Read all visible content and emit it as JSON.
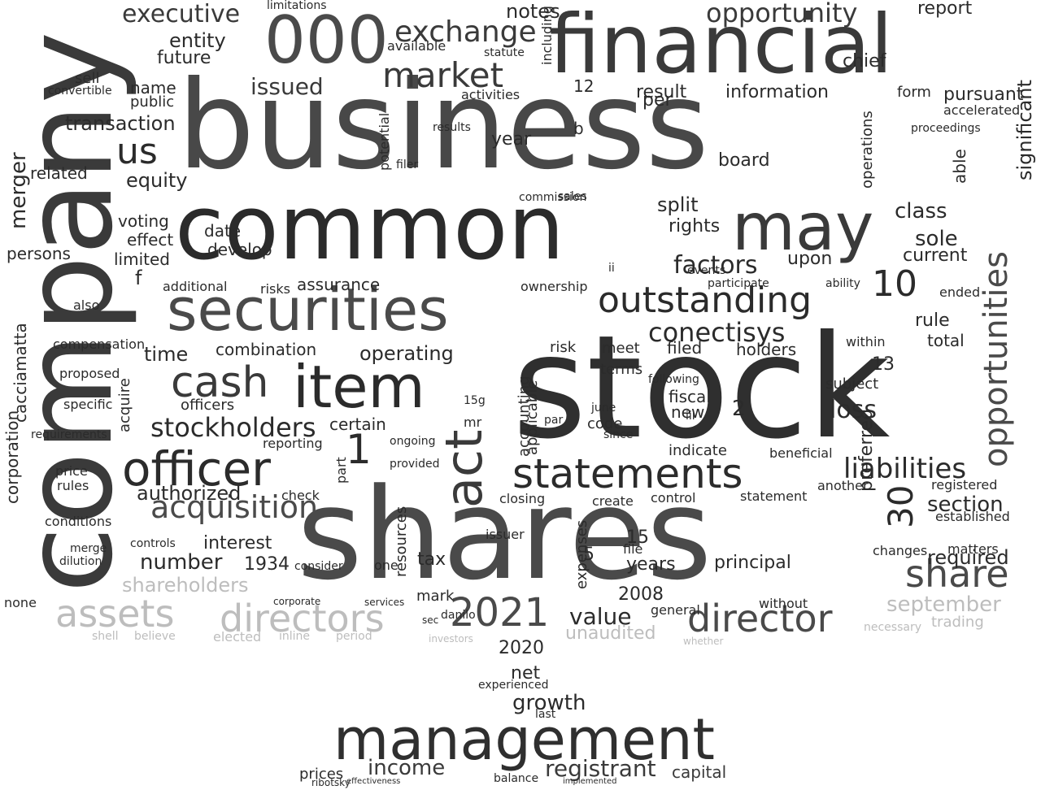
{
  "wordcloud": {
    "colors": {
      "background": "#ffffff",
      "dark": "#2b2b2b",
      "mid": "#4a4a4a",
      "light": "#bdbdbd"
    },
    "words": [
      {
        "t": "company",
        "c": "#3a3a3a",
        "r": 1
      },
      {
        "t": "business",
        "c": "#484848"
      },
      {
        "t": "stock",
        "c": "#2f2f2f"
      },
      {
        "t": "shares",
        "c": "#4a4a4a"
      },
      {
        "t": "common",
        "c": "#2b2b2b"
      },
      {
        "t": "financial",
        "c": "#3a3a3a"
      },
      {
        "t": "securities",
        "c": "#4a4a4a"
      },
      {
        "t": "management",
        "c": "#2f2f2f"
      },
      {
        "t": "may",
        "c": "#3a3a3a"
      },
      {
        "t": "000",
        "c": "#4a4a4a"
      },
      {
        "t": "item",
        "c": "#2b2b2b"
      },
      {
        "t": "officer",
        "c": "#2b2b2b"
      },
      {
        "t": "act",
        "c": "#3a3a3a",
        "r": 1
      },
      {
        "t": "statements",
        "c": "#2b2b2b"
      },
      {
        "t": "opportunities",
        "c": "#4a4a4a",
        "r": 1
      },
      {
        "t": "cash",
        "c": "#3a3a3a"
      },
      {
        "t": "outstanding",
        "c": "#2b2b2b"
      },
      {
        "t": "2021",
        "c": "#4a4a4a"
      },
      {
        "t": "director",
        "c": "#4a4a4a"
      },
      {
        "t": "assets",
        "c": "#bdbdbd"
      },
      {
        "t": "directors",
        "c": "#bdbdbd"
      },
      {
        "t": "market",
        "c": "#3a3a3a"
      },
      {
        "t": "acquisition",
        "c": "#4a4a4a"
      },
      {
        "t": "exchange",
        "c": "#3a3a3a"
      },
      {
        "t": "opportunity",
        "c": "#3a3a3a"
      },
      {
        "t": "stockholders",
        "c": "#2b2b2b"
      },
      {
        "t": "share",
        "c": "#4a4a4a"
      },
      {
        "t": "conectisys",
        "c": "#2b2b2b"
      },
      {
        "t": "liabilities",
        "c": "#2b2b2b"
      },
      {
        "t": "factors",
        "c": "#2b2b2b"
      },
      {
        "t": "executive",
        "c": "#3a3a3a"
      },
      {
        "t": "issued",
        "c": "#3a3a3a"
      },
      {
        "t": "value",
        "c": "#2b2b2b"
      },
      {
        "t": "september",
        "c": "#bdbdbd"
      },
      {
        "t": "shareholders",
        "c": "#bdbdbd"
      },
      {
        "t": "unaudited",
        "c": "#bdbdbd"
      },
      {
        "t": "registrant",
        "c": "#3a3a3a"
      },
      {
        "t": "income",
        "c": "#3a3a3a"
      },
      {
        "t": "authorized",
        "c": "#2b2b2b"
      },
      {
        "t": "number",
        "c": "#2b2b2b"
      },
      {
        "t": "loss",
        "c": "#2b2b2b"
      },
      {
        "t": "sole",
        "c": "#2b2b2b"
      },
      {
        "t": "class",
        "c": "#2b2b2b"
      },
      {
        "t": "required",
        "c": "#2b2b2b"
      },
      {
        "t": "section",
        "c": "#2b2b2b"
      },
      {
        "t": "operating",
        "c": "#2b2b2b"
      },
      {
        "t": "time",
        "c": "#2b2b2b"
      },
      {
        "t": "equity",
        "c": "#2b2b2b"
      },
      {
        "t": "transaction",
        "c": "#2b2b2b"
      },
      {
        "t": "entity",
        "c": "#2b2b2b"
      },
      {
        "t": "future",
        "c": "#2b2b2b"
      },
      {
        "t": "growth",
        "c": "#2b2b2b"
      },
      {
        "t": "net",
        "c": "#2b2b2b"
      },
      {
        "t": "2020",
        "c": "#2b2b2b"
      },
      {
        "t": "notes",
        "c": "#2b2b2b"
      },
      {
        "t": "chief",
        "c": "#2b2b2b"
      },
      {
        "t": "report",
        "c": "#2b2b2b"
      },
      {
        "t": "information",
        "c": "#2b2b2b"
      },
      {
        "t": "result",
        "c": "#2b2b2b"
      },
      {
        "t": "pursuant",
        "c": "#2b2b2b"
      },
      {
        "t": "rights",
        "c": "#2b2b2b"
      },
      {
        "t": "split",
        "c": "#2b2b2b"
      },
      {
        "t": "upon",
        "c": "#2b2b2b"
      },
      {
        "t": "current",
        "c": "#2b2b2b"
      },
      {
        "t": "significant",
        "c": "#2b2b2b",
        "r": 1
      },
      {
        "t": "rule",
        "c": "#2b2b2b"
      },
      {
        "t": "total",
        "c": "#2b2b2b"
      },
      {
        "t": "preferred",
        "c": "#2b2b2b",
        "r": 1
      },
      {
        "t": "filed",
        "c": "#2b2b2b"
      },
      {
        "t": "holders",
        "c": "#2b2b2b"
      },
      {
        "t": "interest",
        "c": "#2b2b2b"
      },
      {
        "t": "1934",
        "c": "#2b2b2b"
      },
      {
        "t": "principal",
        "c": "#2b2b2b"
      },
      {
        "t": "years",
        "c": "#2b2b2b"
      },
      {
        "t": "2008",
        "c": "#2b2b2b"
      },
      {
        "t": "capital",
        "c": "#3a3a3a"
      },
      {
        "t": "prices",
        "c": "#2b2b2b"
      },
      {
        "t": "mark",
        "c": "#2b2b2b"
      },
      {
        "t": "tax",
        "c": "#2b2b2b"
      },
      {
        "t": "certain",
        "c": "#2b2b2b"
      },
      {
        "t": "combination",
        "c": "#2b2b2b"
      },
      {
        "t": "assurance",
        "c": "#2b2b2b"
      },
      {
        "t": "voting",
        "c": "#2b2b2b"
      },
      {
        "t": "limited",
        "c": "#2b2b2b"
      },
      {
        "t": "persons",
        "c": "#2b2b2b"
      },
      {
        "t": "date",
        "c": "#2b2b2b"
      },
      {
        "t": "develop",
        "c": "#2b2b2b"
      },
      {
        "t": "effect",
        "c": "#2b2b2b"
      },
      {
        "t": "related",
        "c": "#2b2b2b"
      },
      {
        "t": "us",
        "c": "#2b2b2b"
      },
      {
        "t": "name",
        "c": "#2b2b2b"
      },
      {
        "t": "public",
        "c": "#2b2b2b"
      },
      {
        "t": "sell",
        "c": "#2b2b2b"
      },
      {
        "t": "year",
        "c": "#2b2b2b"
      },
      {
        "t": "board",
        "c": "#2b2b2b"
      },
      {
        "t": "per",
        "c": "#2b2b2b"
      },
      {
        "t": "form",
        "c": "#2b2b2b"
      },
      {
        "t": "able",
        "c": "#2b2b2b",
        "r": 1
      },
      {
        "t": "ownership",
        "c": "#2b2b2b"
      },
      {
        "t": "risks",
        "c": "#2b2b2b"
      },
      {
        "t": "risk",
        "c": "#2b2b2b"
      },
      {
        "t": "additional",
        "c": "#2b2b2b"
      },
      {
        "t": "officers",
        "c": "#2b2b2b"
      },
      {
        "t": "accounting",
        "c": "#2b2b2b",
        "r": 1
      },
      {
        "t": "applicable",
        "c": "#2b2b2b",
        "r": 1
      },
      {
        "t": "expenses",
        "c": "#2b2b2b",
        "r": 1
      },
      {
        "t": "resources",
        "c": "#2b2b2b",
        "r": 1
      },
      {
        "t": "code",
        "c": "#2b2b2b"
      },
      {
        "t": "new",
        "c": "#2b2b2b"
      },
      {
        "t": "fiscal",
        "c": "#2b2b2b"
      },
      {
        "t": "terms",
        "c": "#2b2b2b"
      },
      {
        "t": "subject",
        "c": "#2b2b2b"
      },
      {
        "t": "meet",
        "c": "#2b2b2b"
      },
      {
        "t": "indicate",
        "c": "#2b2b2b"
      },
      {
        "t": "statement",
        "c": "#2b2b2b"
      },
      {
        "t": "control",
        "c": "#2b2b2b"
      },
      {
        "t": "another",
        "c": "#2b2b2b"
      },
      {
        "t": "registered",
        "c": "#2b2b2b"
      },
      {
        "t": "established",
        "c": "#2b2b2b"
      },
      {
        "t": "matters",
        "c": "#2b2b2b"
      },
      {
        "t": "changes",
        "c": "#2b2b2b"
      },
      {
        "t": "trading",
        "c": "#bdbdbd"
      },
      {
        "t": "necessary",
        "c": "#bdbdbd"
      },
      {
        "t": "elected",
        "c": "#bdbdbd"
      },
      {
        "t": "believe",
        "c": "#bdbdbd"
      },
      {
        "t": "investors",
        "c": "#bdbdbd"
      },
      {
        "t": "whether",
        "c": "#bdbdbd"
      },
      {
        "t": "inline",
        "c": "#bdbdbd"
      },
      {
        "t": "period",
        "c": "#bdbdbd"
      },
      {
        "t": "shell",
        "c": "#bdbdbd"
      },
      {
        "t": "experienced",
        "c": "#2b2b2b"
      },
      {
        "t": "balance",
        "c": "#2b2b2b"
      },
      {
        "t": "implemented",
        "c": "#2b2b2b"
      },
      {
        "t": "effectiveness",
        "c": "#2b2b2b"
      },
      {
        "t": "check",
        "c": "#2b2b2b"
      },
      {
        "t": "merger",
        "c": "#2b2b2b",
        "r": 1
      },
      {
        "t": "corporation",
        "c": "#2b2b2b",
        "r": 1
      },
      {
        "t": "cacciamatta",
        "c": "#2b2b2b",
        "r": 1
      },
      {
        "t": "compensation",
        "c": "#2b2b2b"
      },
      {
        "t": "conditions",
        "c": "#2b2b2b"
      },
      {
        "t": "price",
        "c": "#2b2b2b"
      },
      {
        "t": "rules",
        "c": "#2b2b2b"
      },
      {
        "t": "none",
        "c": "#2b2b2b"
      },
      {
        "t": "proposed",
        "c": "#2b2b2b"
      },
      {
        "t": "specific",
        "c": "#2b2b2b"
      },
      {
        "t": "requirements",
        "c": "#2b2b2b"
      },
      {
        "t": "merge",
        "c": "#2b2b2b"
      },
      {
        "t": "dilution",
        "c": "#2b2b2b"
      },
      {
        "t": "controls",
        "c": "#2b2b2b"
      },
      {
        "t": "reporting",
        "c": "#2b2b2b"
      },
      {
        "t": "ongoing",
        "c": "#2b2b2b"
      },
      {
        "t": "provided",
        "c": "#2b2b2b"
      },
      {
        "t": "limitations",
        "c": "#2b2b2b"
      },
      {
        "t": "available",
        "c": "#2b2b2b"
      },
      {
        "t": "statute",
        "c": "#2b2b2b"
      },
      {
        "t": "activities",
        "c": "#2b2b2b"
      },
      {
        "t": "including",
        "c": "#2b2b2b",
        "r": 1
      },
      {
        "t": "potential",
        "c": "#2b2b2b",
        "r": 1
      },
      {
        "t": "operations",
        "c": "#2b2b2b",
        "r": 1
      },
      {
        "t": "accelerated",
        "c": "#2b2b2b"
      },
      {
        "t": "proceedings",
        "c": "#2b2b2b"
      },
      {
        "t": "events",
        "c": "#2b2b2b"
      },
      {
        "t": "participate",
        "c": "#2b2b2b"
      },
      {
        "t": "ability",
        "c": "#2b2b2b"
      },
      {
        "t": "ended",
        "c": "#2b2b2b"
      },
      {
        "t": "within",
        "c": "#2b2b2b"
      },
      {
        "t": "following",
        "c": "#2b2b2b"
      },
      {
        "t": "june",
        "c": "#2b2b2b"
      },
      {
        "t": "since",
        "c": "#2b2b2b"
      },
      {
        "t": "beneficial",
        "c": "#2b2b2b"
      },
      {
        "t": "create",
        "c": "#2b2b2b"
      },
      {
        "t": "closing",
        "c": "#2b2b2b"
      },
      {
        "t": "issuer",
        "c": "#2b2b2b"
      },
      {
        "t": "file",
        "c": "#2b2b2b"
      },
      {
        "t": "general",
        "c": "#2b2b2b"
      },
      {
        "t": "without",
        "c": "#2b2b2b"
      },
      {
        "t": "consider",
        "c": "#2b2b2b"
      },
      {
        "t": "services",
        "c": "#2b2b2b"
      },
      {
        "t": "corporate",
        "c": "#2b2b2b"
      },
      {
        "t": "danilo",
        "c": "#2b2b2b"
      },
      {
        "t": "sec",
        "c": "#2b2b2b"
      },
      {
        "t": "acquire",
        "c": "#2b2b2b",
        "r": 1
      },
      {
        "t": "par",
        "c": "#2b2b2b"
      },
      {
        "t": "sales",
        "c": "#2b2b2b"
      },
      {
        "t": "commission",
        "c": "#2b2b2b"
      },
      {
        "t": "filer",
        "c": "#2b2b2b"
      },
      {
        "t": "results",
        "c": "#2b2b2b"
      },
      {
        "t": "convertible",
        "c": "#2b2b2b"
      },
      {
        "t": "ribotsky",
        "c": "#2b2b2b"
      },
      {
        "t": "30",
        "c": "#2b2b2b",
        "r": 1
      },
      {
        "t": "10",
        "c": "#2b2b2b"
      },
      {
        "t": "1",
        "c": "#2b2b2b"
      },
      {
        "t": "12",
        "c": "#2b2b2b"
      },
      {
        "t": "15",
        "c": "#2b2b2b"
      },
      {
        "t": "13",
        "c": "#2b2b2b"
      },
      {
        "t": "5",
        "c": "#2b2b2b"
      },
      {
        "t": "2",
        "c": "#2b2b2b"
      },
      {
        "t": "f",
        "c": "#2b2b2b"
      },
      {
        "t": "b",
        "c": "#2b2b2b"
      },
      {
        "t": "mr",
        "c": "#2b2b2b"
      },
      {
        "t": "15g",
        "c": "#2b2b2b"
      },
      {
        "t": "part",
        "c": "#2b2b2b",
        "r": 1
      },
      {
        "t": "one",
        "c": "#2b2b2b"
      },
      {
        "t": "last",
        "c": "#2b2b2b"
      },
      {
        "t": "also",
        "c": "#2b2b2b"
      },
      {
        "t": "iii",
        "c": "#2b2b2b"
      },
      {
        "t": "ii",
        "c": "#2b2b2b"
      }
    ]
  }
}
